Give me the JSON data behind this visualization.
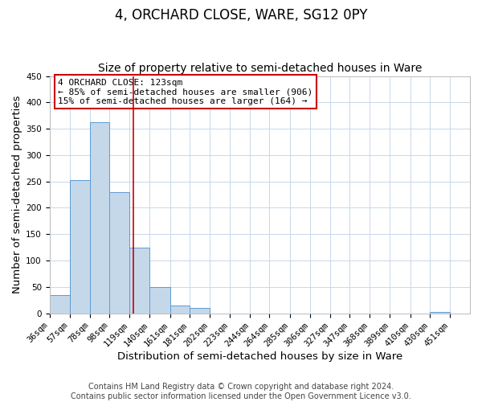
{
  "title": "4, ORCHARD CLOSE, WARE, SG12 0PY",
  "subtitle": "Size of property relative to semi-detached houses in Ware",
  "xlabel": "Distribution of semi-detached houses by size in Ware",
  "ylabel": "Number of semi-detached properties",
  "footer_line1": "Contains HM Land Registry data © Crown copyright and database right 2024.",
  "footer_line2": "Contains public sector information licensed under the Open Government Licence v3.0.",
  "bin_labels": [
    "36sqm",
    "57sqm",
    "78sqm",
    "98sqm",
    "119sqm",
    "140sqm",
    "161sqm",
    "181sqm",
    "202sqm",
    "223sqm",
    "244sqm",
    "264sqm",
    "285sqm",
    "306sqm",
    "327sqm",
    "347sqm",
    "368sqm",
    "389sqm",
    "410sqm",
    "430sqm",
    "451sqm"
  ],
  "bin_edges": [
    36,
    57,
    78,
    98,
    119,
    140,
    161,
    181,
    202,
    223,
    244,
    264,
    285,
    306,
    327,
    347,
    368,
    389,
    410,
    430,
    451
  ],
  "bar_values": [
    35,
    253,
    362,
    230,
    124,
    50,
    15,
    10,
    0,
    0,
    0,
    0,
    0,
    0,
    0,
    0,
    0,
    0,
    0,
    3
  ],
  "bar_color": "#c5d8ea",
  "bar_edge_color": "#5b9bd5",
  "vline_x": 123,
  "annotation_title": "4 ORCHARD CLOSE: 123sqm",
  "annotation_line1": "← 85% of semi-detached houses are smaller (906)",
  "annotation_line2": "15% of semi-detached houses are larger (164) →",
  "annotation_box_color": "#ffffff",
  "annotation_box_edge_color": "#cc0000",
  "vline_color": "#cc0000",
  "ylim": [
    0,
    450
  ],
  "yticks": [
    0,
    50,
    100,
    150,
    200,
    250,
    300,
    350,
    400,
    450
  ],
  "bg_color": "#ffffff",
  "grid_color": "#c8d8e8",
  "title_fontsize": 12,
  "subtitle_fontsize": 10,
  "axis_label_fontsize": 9.5,
  "tick_fontsize": 7.5,
  "footer_fontsize": 7
}
